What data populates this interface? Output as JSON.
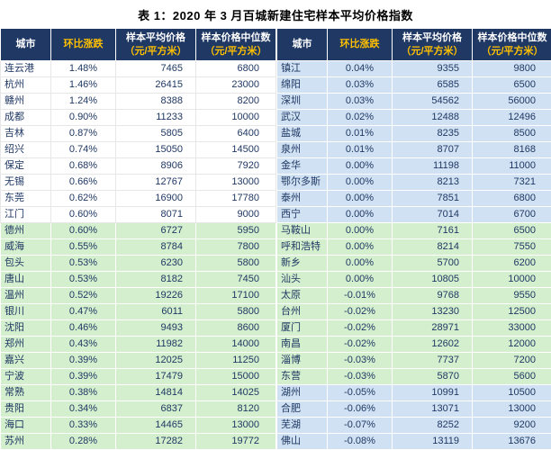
{
  "title": "表 1：2020 年 3 月百城新建住宅样本平均价格指数",
  "header": {
    "city": "城市",
    "change": "环比涨跌",
    "avg": "样本平均价格",
    "avg_unit": "（元/平方米）",
    "median": "样本价格中位数",
    "median_unit": "（元/平方米）"
  },
  "colors": {
    "header_bg": "#1F3864",
    "header_text": "#FFFFFF",
    "accent_yellow": "#FFC000",
    "band_white": "#FFFFFF",
    "band_green": "#D3EFCD",
    "band_blue": "#CFE1F2",
    "body_text": "#203864"
  },
  "chart_data": {
    "type": "table",
    "title": "表 1：2020 年 3 月百城新建住宅样本平均价格指数",
    "columns": [
      "城市",
      "环比涨跌",
      "样本平均价格（元/平方米）",
      "样本价格中位数（元/平方米）"
    ],
    "left_rows": [
      [
        "连云港",
        "1.48%",
        "7465",
        "6800"
      ],
      [
        "杭州",
        "1.46%",
        "26415",
        "23000"
      ],
      [
        "赣州",
        "1.24%",
        "8388",
        "8200"
      ],
      [
        "成都",
        "0.90%",
        "11233",
        "10000"
      ],
      [
        "吉林",
        "0.87%",
        "5805",
        "6400"
      ],
      [
        "绍兴",
        "0.74%",
        "15050",
        "14500"
      ],
      [
        "保定",
        "0.68%",
        "8906",
        "7920"
      ],
      [
        "无锡",
        "0.66%",
        "12767",
        "13000"
      ],
      [
        "东莞",
        "0.62%",
        "16900",
        "17780"
      ],
      [
        "江门",
        "0.60%",
        "8071",
        "9000"
      ],
      [
        "德州",
        "0.60%",
        "6727",
        "5950"
      ],
      [
        "威海",
        "0.55%",
        "8784",
        "7800"
      ],
      [
        "包头",
        "0.53%",
        "6230",
        "5800"
      ],
      [
        "唐山",
        "0.53%",
        "8182",
        "7450"
      ],
      [
        "温州",
        "0.52%",
        "19226",
        "17100"
      ],
      [
        "银川",
        "0.47%",
        "6011",
        "5800"
      ],
      [
        "沈阳",
        "0.46%",
        "9493",
        "8600"
      ],
      [
        "郑州",
        "0.43%",
        "11982",
        "14000"
      ],
      [
        "嘉兴",
        "0.39%",
        "12025",
        "11250"
      ],
      [
        "宁波",
        "0.39%",
        "17479",
        "15000"
      ],
      [
        "常熟",
        "0.38%",
        "14814",
        "14025"
      ],
      [
        "贵阳",
        "0.34%",
        "6837",
        "8120"
      ],
      [
        "海口",
        "0.33%",
        "14465",
        "13000"
      ],
      [
        "苏州",
        "0.28%",
        "17282",
        "19772"
      ]
    ],
    "right_rows": [
      [
        "镇江",
        "0.04%",
        "9355",
        "9800"
      ],
      [
        "绵阳",
        "0.03%",
        "6585",
        "6500"
      ],
      [
        "深圳",
        "0.03%",
        "54562",
        "56000"
      ],
      [
        "武汉",
        "0.02%",
        "12488",
        "12496"
      ],
      [
        "盐城",
        "0.01%",
        "8235",
        "8500"
      ],
      [
        "泉州",
        "0.01%",
        "8707",
        "8168"
      ],
      [
        "金华",
        "0.00%",
        "11198",
        "11000"
      ],
      [
        "鄂尔多斯",
        "0.00%",
        "8213",
        "7321"
      ],
      [
        "泰州",
        "0.00%",
        "7851",
        "6800"
      ],
      [
        "西宁",
        "0.00%",
        "7014",
        "6700"
      ],
      [
        "马鞍山",
        "0.00%",
        "7161",
        "6500"
      ],
      [
        "呼和浩特",
        "0.00%",
        "8214",
        "7550"
      ],
      [
        "新乡",
        "0.00%",
        "5700",
        "6200"
      ],
      [
        "汕头",
        "0.00%",
        "10805",
        "10000"
      ],
      [
        "太原",
        "-0.01%",
        "9768",
        "9550"
      ],
      [
        "台州",
        "-0.02%",
        "13230",
        "12500"
      ],
      [
        "厦门",
        "-0.02%",
        "28971",
        "33000"
      ],
      [
        "南昌",
        "-0.02%",
        "12602",
        "12000"
      ],
      [
        "淄博",
        "-0.03%",
        "7737",
        "7200"
      ],
      [
        "东营",
        "-0.03%",
        "5870",
        "5600"
      ],
      [
        "湖州",
        "-0.05%",
        "10991",
        "10500"
      ],
      [
        "合肥",
        "-0.06%",
        "13071",
        "13000"
      ],
      [
        "芜湖",
        "-0.07%",
        "8252",
        "9200"
      ],
      [
        "佛山",
        "-0.08%",
        "13119",
        "13676"
      ]
    ],
    "left_bands": [
      {
        "start": 0,
        "end": 9,
        "color": "white"
      },
      {
        "start": 10,
        "end": 23,
        "color": "green"
      }
    ],
    "right_bands": [
      {
        "start": 0,
        "end": 9,
        "color": "blue"
      },
      {
        "start": 10,
        "end": 19,
        "color": "green"
      },
      {
        "start": 20,
        "end": 23,
        "color": "blue"
      }
    ]
  }
}
